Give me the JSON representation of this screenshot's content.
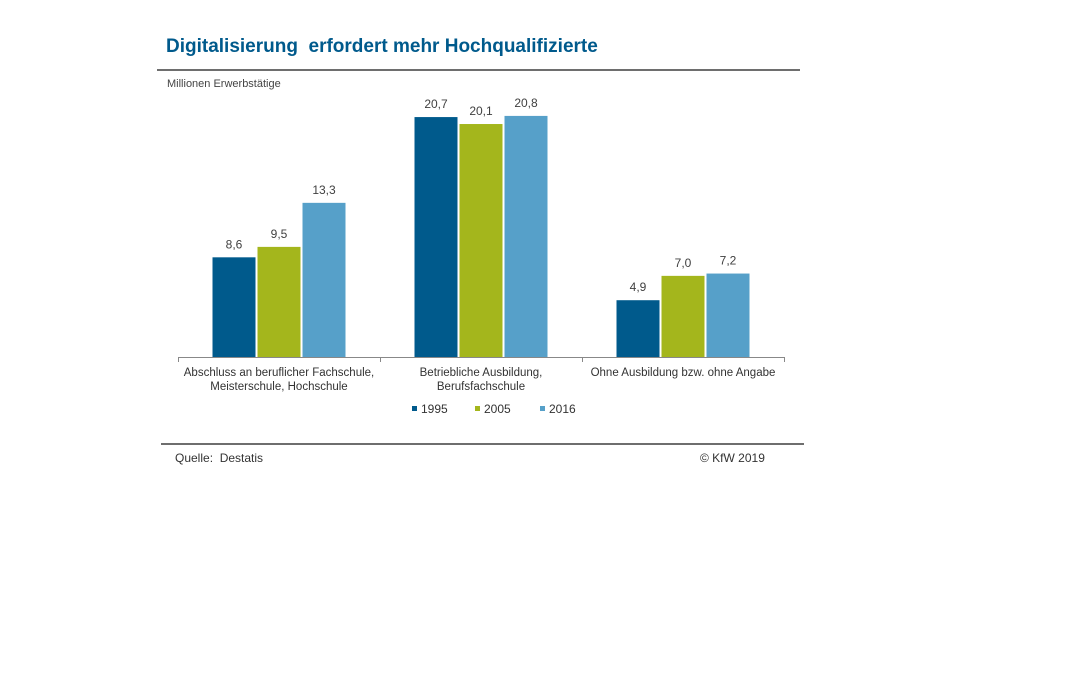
{
  "title": "Digitalisierung  erfordert mehr Hochqualifizierte",
  "unit_label": "Millionen Erwerbstätige",
  "source": "Quelle:  Destatis",
  "copyright": "© KfW 2019",
  "chart_data": {
    "type": "bar",
    "ylim": [
      0,
      22
    ],
    "grid": false,
    "legend_position": "bottom",
    "categories": [
      [
        "Abschluss an beruflicher Fachschule,",
        "Meisterschule, Hochschule"
      ],
      [
        "Betriebliche Ausbildung,",
        "Berufsfachschule"
      ],
      [
        "Ohne Ausbildung bzw. ohne Angabe"
      ]
    ],
    "series": [
      {
        "name": "1995",
        "color": "#005a8c",
        "values": [
          8.6,
          20.7,
          4.9
        ],
        "labels": [
          "8,6",
          "20,7",
          "4,9"
        ]
      },
      {
        "name": "2005",
        "color": "#a4b61c",
        "values": [
          9.5,
          20.1,
          7.0
        ],
        "labels": [
          "9,5",
          "20,1",
          "7,0"
        ]
      },
      {
        "name": "2016",
        "color": "#56a0c9",
        "values": [
          13.3,
          20.8,
          7.2
        ],
        "labels": [
          "13,3",
          "20,8",
          "7,2"
        ]
      }
    ]
  }
}
